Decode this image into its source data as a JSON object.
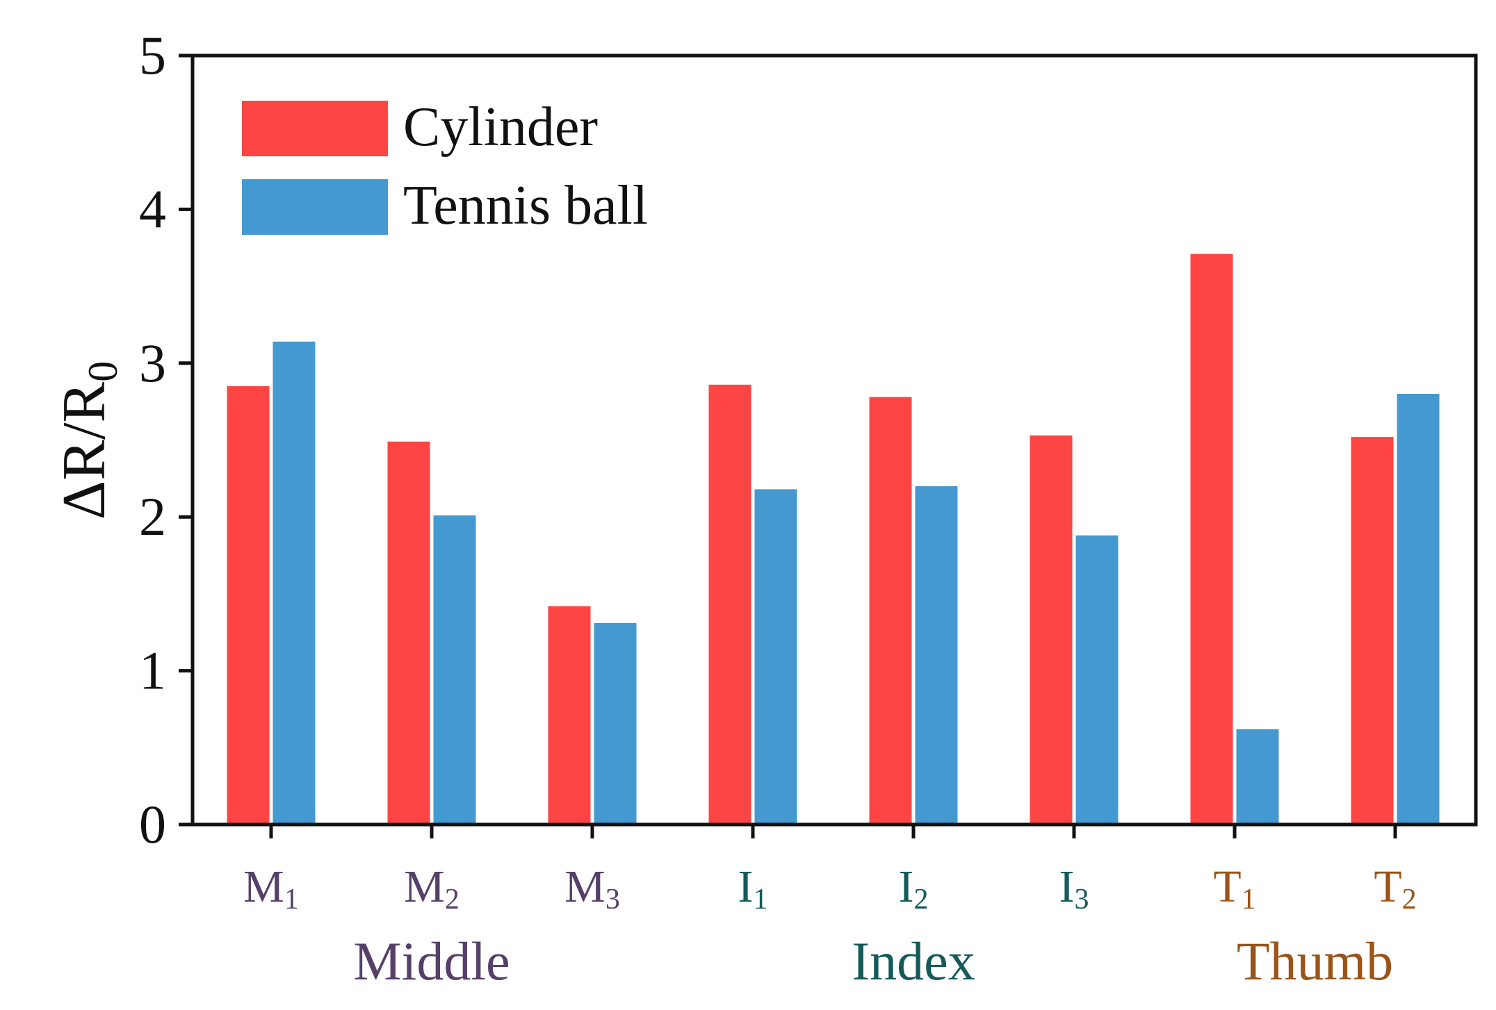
{
  "chart_data": {
    "type": "bar",
    "title": "",
    "xlabel": "",
    "ylabel": {
      "main": "ΔR/R",
      "subscript": "0"
    },
    "ylim": [
      0,
      5
    ],
    "yticks": [
      0,
      1,
      2,
      3,
      4,
      5
    ],
    "grid": false,
    "legend_position": "top-left",
    "categories": [
      {
        "letter": "M",
        "sub": "1",
        "group": "Middle"
      },
      {
        "letter": "M",
        "sub": "2",
        "group": "Middle"
      },
      {
        "letter": "M",
        "sub": "3",
        "group": "Middle"
      },
      {
        "letter": "I",
        "sub": "1",
        "group": "Index"
      },
      {
        "letter": "I",
        "sub": "2",
        "group": "Index"
      },
      {
        "letter": "I",
        "sub": "3",
        "group": "Index"
      },
      {
        "letter": "T",
        "sub": "1",
        "group": "Thumb"
      },
      {
        "letter": "T",
        "sub": "2",
        "group": "Thumb"
      }
    ],
    "groups": [
      {
        "name": "Middle",
        "color": "#56406a"
      },
      {
        "name": "Index",
        "color": "#145a5a"
      },
      {
        "name": "Thumb",
        "color": "#9a5418"
      }
    ],
    "series": [
      {
        "name": "Cylinder",
        "color": "#ff4444",
        "values": [
          2.85,
          2.49,
          1.42,
          2.86,
          2.78,
          2.53,
          3.71,
          2.52
        ]
      },
      {
        "name": "Tennis ball",
        "color": "#4499d1",
        "values": [
          3.14,
          2.01,
          1.31,
          2.18,
          2.2,
          1.88,
          0.62,
          2.8
        ]
      }
    ]
  }
}
